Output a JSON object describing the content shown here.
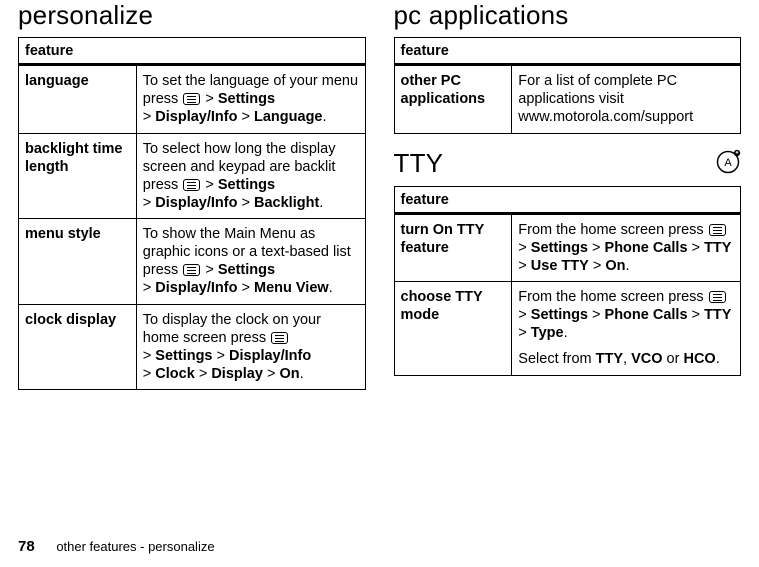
{
  "left": {
    "heading": "personalize",
    "tableHeader": "feature",
    "rows": [
      {
        "name": "language",
        "pre": "To set the language of your menu press ",
        "path": [
          "Settings",
          "Display/Info",
          "Language"
        ],
        "post": "."
      },
      {
        "name": "backlight time length",
        "pre": "To select how long the display screen and keypad are backlit press ",
        "path": [
          "Settings",
          "Display/Info",
          "Backlight"
        ],
        "post": "."
      },
      {
        "name": "menu style",
        "pre": "To show the Main Menu as graphic icons or a text-based list press ",
        "path": [
          "Settings",
          "Display/Info",
          "Menu View"
        ],
        "post": "."
      },
      {
        "name": "clock display",
        "pre": "To display the clock on your home screen press ",
        "path": [
          "Settings",
          "Display/Info",
          "Clock",
          "Display",
          "On"
        ],
        "post": "."
      }
    ]
  },
  "rightTop": {
    "heading": "pc applications",
    "tableHeader": "feature",
    "rows": [
      {
        "name": "other PC applications",
        "desc": "For a list of complete PC applications visit www.motorola.com/support"
      }
    ]
  },
  "tty": {
    "heading": "TTY",
    "tableHeader": "feature",
    "rows": [
      {
        "name": "turn On TTY feature",
        "pre": "From the home screen press ",
        "path": [
          "Settings",
          "Phone Calls",
          "TTY",
          "Use TTY",
          "On"
        ],
        "post": "."
      },
      {
        "name": "choose TTY mode",
        "pre": "From the home screen press ",
        "path": [
          "Settings",
          "Phone Calls",
          "TTY",
          "Type"
        ],
        "post": ".",
        "extra_pre": "Select from ",
        "extra_opts": [
          "TTY",
          "VCO",
          "HCO"
        ],
        "extra_post": "."
      }
    ]
  },
  "footer": {
    "page": "78",
    "text": "other features - personalize"
  }
}
